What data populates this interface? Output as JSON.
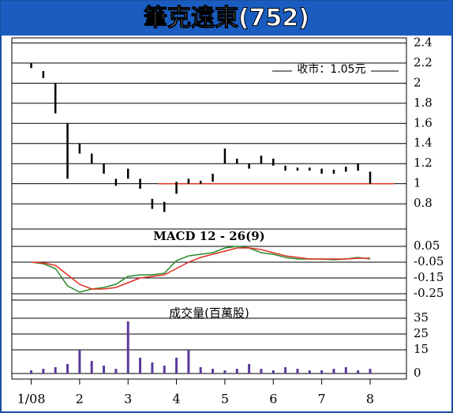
{
  "chart_data": [
    {
      "type": "hilo",
      "title": "筆克遠東(752)",
      "annotation": "收市：1.05元",
      "color": "#000000",
      "hline": 1.0,
      "hline_color": "#e03020",
      "x": [
        1.0,
        1.25,
        1.5,
        1.75,
        2.0,
        2.25,
        2.5,
        2.75,
        3.0,
        3.25,
        3.5,
        3.75,
        4.0,
        4.25,
        4.5,
        4.75,
        5.0,
        5.25,
        5.5,
        5.75,
        6.0,
        6.25,
        6.5,
        6.75,
        7.0,
        7.25,
        7.5,
        7.75,
        8.0
      ],
      "high": [
        2.2,
        2.12,
        2.0,
        1.6,
        1.4,
        1.3,
        1.2,
        1.05,
        1.15,
        1.05,
        0.85,
        0.82,
        1.02,
        1.05,
        1.03,
        1.1,
        1.35,
        1.25,
        1.2,
        1.28,
        1.25,
        1.18,
        1.16,
        1.16,
        1.15,
        1.14,
        1.17,
        1.2,
        1.12
      ],
      "low": [
        2.15,
        2.05,
        1.7,
        1.05,
        1.3,
        1.2,
        1.1,
        0.98,
        1.05,
        0.95,
        0.75,
        0.72,
        0.9,
        1.0,
        1.0,
        1.02,
        1.2,
        1.2,
        1.15,
        1.2,
        1.18,
        1.13,
        1.13,
        1.13,
        1.1,
        1.1,
        1.12,
        1.13,
        1.0
      ],
      "xlim": [
        0.6,
        8.75
      ],
      "ylim": [
        0.55,
        2.45
      ],
      "yticks": [
        2.4,
        2.2,
        2.0,
        1.8,
        1.6,
        1.4,
        1.2,
        1.0,
        0.8
      ]
    },
    {
      "type": "line",
      "title": "MACD 12 - 26(9)",
      "x": [
        1.0,
        1.25,
        1.5,
        1.75,
        2.0,
        2.25,
        2.5,
        2.75,
        3.0,
        3.25,
        3.5,
        3.75,
        4.0,
        4.25,
        4.5,
        4.75,
        5.0,
        5.25,
        5.5,
        5.75,
        6.0,
        6.25,
        6.5,
        6.75,
        7.0,
        7.25,
        7.5,
        7.75,
        8.0
      ],
      "series": [
        {
          "color": "#2a8a2a",
          "values": [
            -0.05,
            -0.06,
            -0.09,
            -0.2,
            -0.24,
            -0.22,
            -0.21,
            -0.19,
            -0.14,
            -0.13,
            -0.13,
            -0.12,
            -0.04,
            -0.01,
            0.0,
            0.01,
            0.04,
            0.05,
            0.04,
            0.01,
            0.0,
            -0.02,
            -0.03,
            -0.03,
            -0.03,
            -0.035,
            -0.03,
            -0.02,
            -0.03
          ]
        },
        {
          "color": "#e03020",
          "values": [
            -0.05,
            -0.055,
            -0.07,
            -0.13,
            -0.19,
            -0.22,
            -0.22,
            -0.21,
            -0.18,
            -0.15,
            -0.14,
            -0.13,
            -0.09,
            -0.05,
            -0.02,
            0.0,
            0.02,
            0.04,
            0.04,
            0.03,
            0.01,
            -0.01,
            -0.02,
            -0.03,
            -0.03,
            -0.03,
            -0.03,
            -0.025,
            -0.025
          ]
        }
      ],
      "xlim": [
        0.6,
        8.75
      ],
      "ylim": [
        -0.29,
        0.16
      ],
      "yticks": [
        0.05,
        -0.05,
        -0.15,
        -0.25
      ]
    },
    {
      "type": "bar",
      "title": "成交量(百萬股)",
      "color": "#5a3a9a",
      "x": [
        1.0,
        1.25,
        1.5,
        1.75,
        2.0,
        2.25,
        2.5,
        2.75,
        3.0,
        3.25,
        3.5,
        3.75,
        4.0,
        4.25,
        4.5,
        4.75,
        5.0,
        5.25,
        5.5,
        5.75,
        6.0,
        6.25,
        6.5,
        6.75,
        7.0,
        7.25,
        7.5,
        7.75,
        8.0
      ],
      "values": [
        2,
        3,
        4,
        6,
        15,
        8,
        5,
        3,
        33,
        10,
        7,
        5,
        10,
        15,
        4,
        3,
        2,
        3,
        6,
        3,
        2,
        4,
        3,
        2,
        2,
        3,
        4,
        2,
        3
      ],
      "xlim": [
        0.6,
        8.75
      ],
      "ylim": [
        -3.5,
        46.5
      ],
      "yticks": [
        35,
        25,
        15,
        0
      ],
      "xticks": [
        {
          "value": 1,
          "label": "1/08"
        },
        2,
        3,
        4,
        5,
        6,
        7,
        8
      ]
    }
  ]
}
